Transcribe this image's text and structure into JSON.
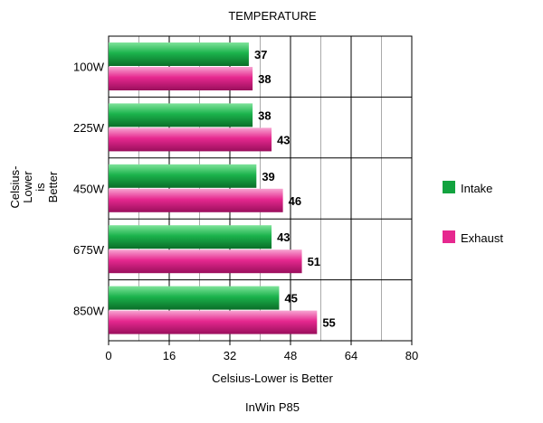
{
  "chart_data": {
    "type": "bar",
    "orientation": "horizontal",
    "title": "TEMPERATURE",
    "footer": "InWin P85",
    "xlabel": "Celsius-Lower is Better",
    "ylabel_lines": [
      "Celsius-",
      "Lower",
      "is",
      "Better"
    ],
    "categories": [
      "100W",
      "225W",
      "450W",
      "675W",
      "850W"
    ],
    "series": [
      {
        "name": "Intake",
        "values": [
          37,
          38,
          39,
          43,
          45
        ],
        "color": "#12a33f"
      },
      {
        "name": "Exhaust",
        "values": [
          38,
          43,
          46,
          51,
          55
        ],
        "color": "#e6288f"
      }
    ],
    "xlim": [
      0,
      80
    ],
    "xticks": [
      "0",
      "16",
      "32",
      "48",
      "64",
      "80"
    ],
    "grid": true,
    "legend_position": "right",
    "data_labels": true
  }
}
